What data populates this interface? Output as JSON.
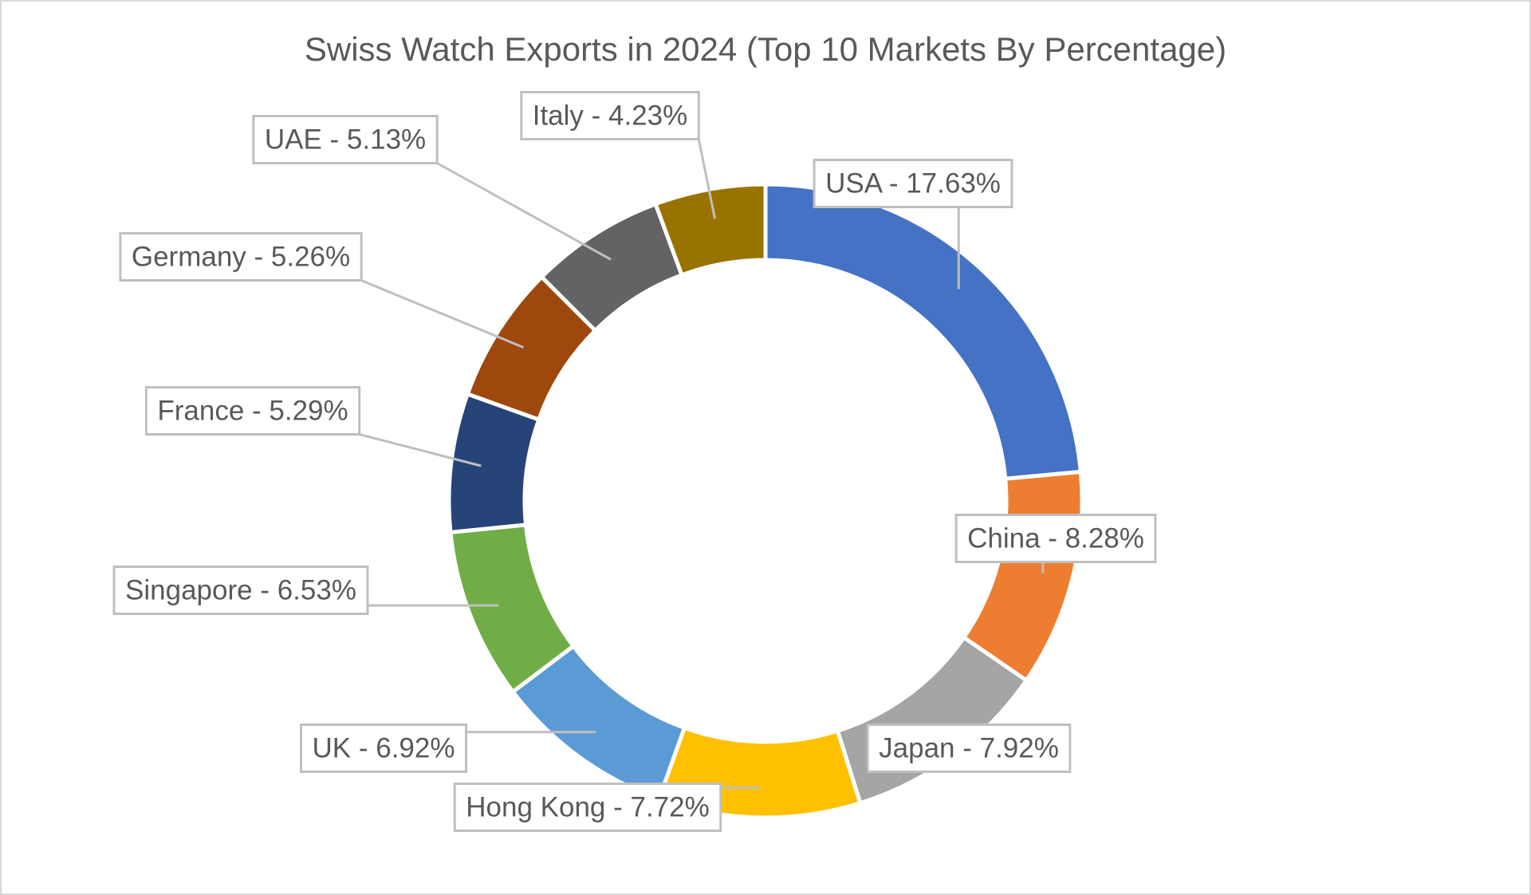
{
  "chart_data": {
    "type": "pie",
    "variant": "donut",
    "title": "Swiss Watch Exports in 2024 (Top 10 Markets By Percentage)",
    "categories": [
      "USA",
      "China",
      "Japan",
      "Hong Kong",
      "UK",
      "Singapore",
      "France",
      "Germany",
      "UAE",
      "Italy"
    ],
    "values": [
      17.63,
      8.28,
      7.92,
      7.72,
      6.92,
      6.53,
      5.29,
      5.26,
      5.13,
      4.23
    ],
    "labels": [
      "USA - 17.63%",
      "China - 8.28%",
      "Japan - 7.92%",
      "Hong Kong - 7.72%",
      "UK - 6.92%",
      "Singapore - 6.53%",
      "France - 5.29%",
      "Germany - 5.26%",
      "UAE - 5.13%",
      "Italy - 4.23%"
    ],
    "colors": [
      "#4472c4",
      "#ed7d31",
      "#a5a5a5",
      "#ffc000",
      "#5b9bd5",
      "#70ad47",
      "#264478",
      "#9e480e",
      "#636363",
      "#997300"
    ],
    "legend": "none",
    "data_labels": "callouts"
  }
}
